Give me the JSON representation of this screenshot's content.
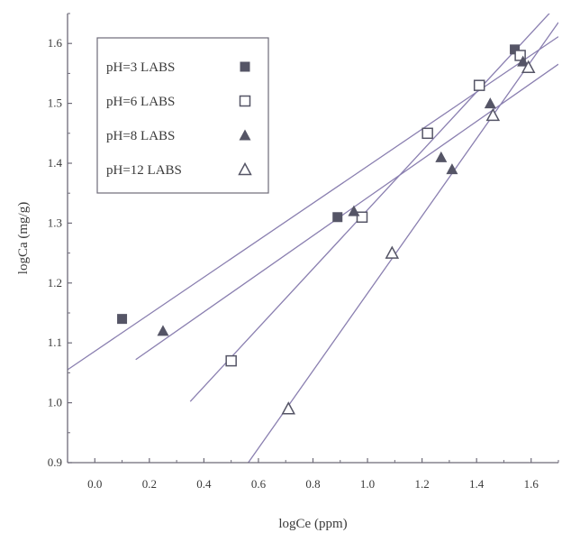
{
  "chart_data": {
    "type": "scatter",
    "xlabel": "logCe (ppm)",
    "ylabel": "logCa (mg/g)",
    "xlim": [
      -0.1,
      1.7
    ],
    "ylim": [
      0.9,
      1.65
    ],
    "xticks": [
      {
        "value": 0.0,
        "label": "0.0"
      },
      {
        "value": 0.2,
        "label": "0.2"
      },
      {
        "value": 0.4,
        "label": "0.4"
      },
      {
        "value": 0.6,
        "label": "0.6"
      },
      {
        "value": 0.8,
        "label": "0.8"
      },
      {
        "value": 1.0,
        "label": "1.0"
      },
      {
        "value": 1.2,
        "label": "1.2"
      },
      {
        "value": 1.4,
        "label": "1.4"
      },
      {
        "value": 1.6,
        "label": "1.6"
      }
    ],
    "yticks": [
      {
        "value": 0.9,
        "label": "0.9"
      },
      {
        "value": 1.0,
        "label": "1.0"
      },
      {
        "value": 1.1,
        "label": "1.1"
      },
      {
        "value": 1.2,
        "label": "1.2"
      },
      {
        "value": 1.3,
        "label": "1.3"
      },
      {
        "value": 1.4,
        "label": "1.4"
      },
      {
        "value": 1.5,
        "label": "1.5"
      },
      {
        "value": 1.6,
        "label": "1.6"
      }
    ],
    "legend_position": "top-left",
    "grid": false,
    "series": [
      {
        "name": "pH=3 LABS",
        "marker": "square-filled",
        "color": "#555566",
        "x": [
          0.1,
          0.89,
          1.54
        ],
        "y": [
          1.14,
          1.31,
          1.59
        ],
        "fit_x": [
          -0.1,
          1.7
        ]
      },
      {
        "name": "pH=6 LABS",
        "marker": "square-open",
        "color": "#555566",
        "x": [
          0.5,
          0.98,
          1.22,
          1.41,
          1.56
        ],
        "y": [
          1.07,
          1.31,
          1.45,
          1.53,
          1.58
        ],
        "fit_x": [
          0.35,
          1.7
        ]
      },
      {
        "name": "pH=8 LABS",
        "marker": "triangle-filled",
        "color": "#555566",
        "x": [
          0.25,
          0.95,
          1.27,
          1.31,
          1.45,
          1.57
        ],
        "y": [
          1.12,
          1.32,
          1.41,
          1.39,
          1.5,
          1.57
        ],
        "fit_x": [
          0.15,
          1.7
        ]
      },
      {
        "name": "pH=12 LABS",
        "marker": "triangle-open",
        "color": "#555566",
        "x": [
          0.71,
          1.09,
          1.46,
          1.59
        ],
        "y": [
          0.99,
          1.25,
          1.48,
          1.56
        ],
        "fit_x": [
          0.55,
          1.7
        ]
      }
    ],
    "line_color": "#8a7fb0"
  }
}
